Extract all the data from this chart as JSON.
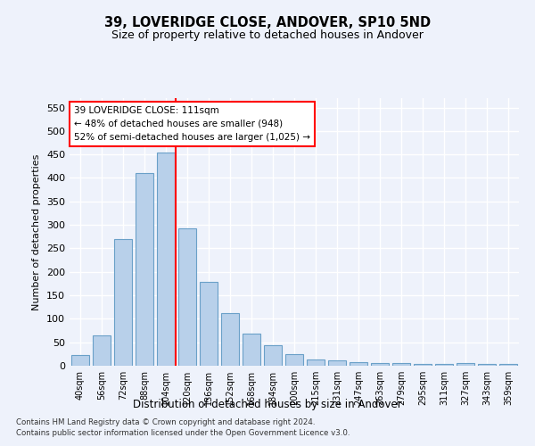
{
  "title1": "39, LOVERIDGE CLOSE, ANDOVER, SP10 5ND",
  "title2": "Size of property relative to detached houses in Andover",
  "xlabel": "Distribution of detached houses by size in Andover",
  "ylabel": "Number of detached properties",
  "bar_labels": [
    "40sqm",
    "56sqm",
    "72sqm",
    "88sqm",
    "104sqm",
    "120sqm",
    "136sqm",
    "152sqm",
    "168sqm",
    "184sqm",
    "200sqm",
    "215sqm",
    "231sqm",
    "247sqm",
    "263sqm",
    "279sqm",
    "295sqm",
    "311sqm",
    "327sqm",
    "343sqm",
    "359sqm"
  ],
  "bar_heights": [
    22,
    65,
    270,
    410,
    455,
    293,
    178,
    112,
    68,
    43,
    24,
    14,
    11,
    7,
    6,
    6,
    4,
    3,
    5,
    3,
    3
  ],
  "bar_color": "#B8D0EA",
  "bar_edge_color": "#6AA0C8",
  "annotation_line1": "39 LOVERIDGE CLOSE: 111sqm",
  "annotation_line2": "← 48% of detached houses are smaller (948)",
  "annotation_line3": "52% of semi-detached houses are larger (1,025) →",
  "ylim": [
    0,
    570
  ],
  "yticks": [
    0,
    50,
    100,
    150,
    200,
    250,
    300,
    350,
    400,
    450,
    500,
    550
  ],
  "footer1": "Contains HM Land Registry data © Crown copyright and database right 2024.",
  "footer2": "Contains public sector information licensed under the Open Government Licence v3.0.",
  "bg_color": "#EEF2FB",
  "grid_color": "white"
}
